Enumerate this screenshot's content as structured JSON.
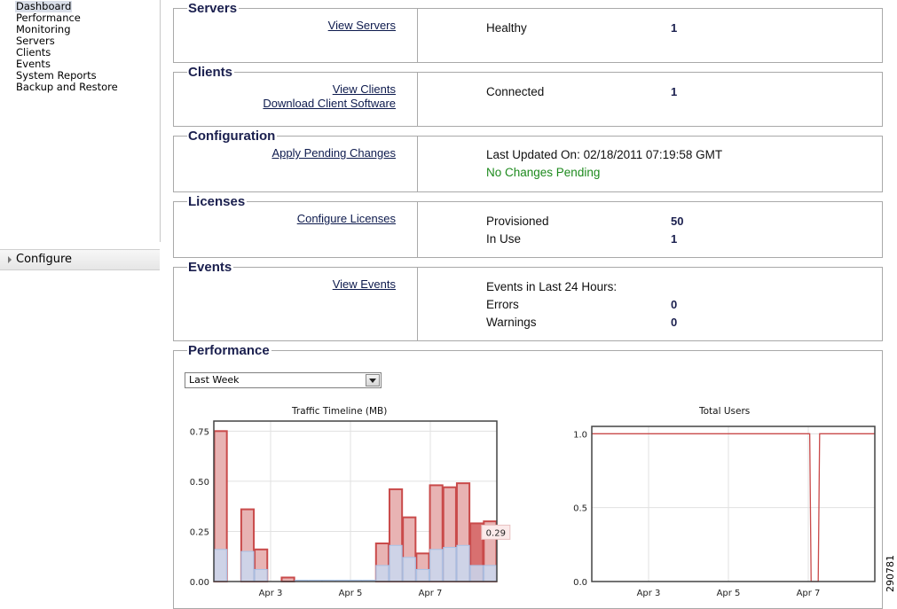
{
  "sidebar": {
    "items": [
      {
        "label": "Dashboard",
        "active": true
      },
      {
        "label": "Performance"
      },
      {
        "label": "Monitoring"
      },
      {
        "label": "Servers"
      },
      {
        "label": "Clients"
      },
      {
        "label": "Events"
      },
      {
        "label": "System Reports"
      },
      {
        "label": "Backup and Restore"
      }
    ],
    "configure_label": "Configure"
  },
  "servers": {
    "title": "Servers",
    "link": "View Servers",
    "status_label": "Healthy",
    "status_value": "1"
  },
  "clients": {
    "title": "Clients",
    "link_view": "View Clients",
    "link_download": "Download Client Software",
    "status_label": "Connected",
    "status_value": "1"
  },
  "configuration": {
    "title": "Configuration",
    "link": "Apply Pending Changes",
    "last_updated": "Last Updated On: 02/18/2011 07:19:58 GMT",
    "pending": "No Changes Pending",
    "pending_color": "#1d8a1d"
  },
  "licenses": {
    "title": "Licenses",
    "link": "Configure Licenses",
    "provisioned_label": "Provisioned",
    "provisioned_value": "50",
    "in_use_label": "In Use",
    "in_use_value": "1"
  },
  "events": {
    "title": "Events",
    "link": "View Events",
    "heading": "Events in Last 24 Hours:",
    "errors_label": "Errors",
    "errors_value": "0",
    "warnings_label": "Warnings",
    "warnings_value": "0"
  },
  "performance": {
    "title": "Performance",
    "range_selected": "Last Week"
  },
  "figure_id": "290781",
  "chart_data": [
    {
      "type": "bar",
      "title": "Traffic Timeline (MB)",
      "xlabel": "",
      "ylabel": "",
      "ylim": [
        0,
        0.8
      ],
      "yticks": [
        "0.00",
        "0.25",
        "0.50",
        "0.75"
      ],
      "xticks": [
        "Apr 3",
        "Apr 5",
        "Apr 7"
      ],
      "grid": true,
      "series": [
        {
          "values": [
            0.75,
            0,
            0.36,
            0.16,
            0,
            0.02,
            0,
            0,
            0,
            0,
            0,
            0,
            0.19,
            0.46,
            0.32,
            0.14,
            0.48,
            0.47,
            0.49,
            0.29,
            0.3
          ],
          "color": "#c94a4a"
        },
        {
          "values": [
            0.16,
            0,
            0.15,
            0.06,
            0,
            0,
            0.005,
            0.005,
            0.005,
            0.005,
            0.005,
            0.005,
            0.08,
            0.18,
            0.12,
            0.06,
            0.16,
            0.17,
            0.18,
            0.08,
            0.08
          ],
          "color": "#a7c3e8"
        }
      ],
      "highlight": {
        "index": 19,
        "label": "0.29"
      }
    },
    {
      "type": "line",
      "title": "Total Users",
      "xlabel": "",
      "ylabel": "",
      "ylim": [
        0,
        1.05
      ],
      "yticks": [
        "0.0",
        "0.5",
        "1.0"
      ],
      "xticks": [
        "Apr 3",
        "Apr 5",
        "Apr 7"
      ],
      "grid": true,
      "series": [
        {
          "x": [
            0,
            0.77,
            0.775,
            0.8,
            0.805,
            1
          ],
          "y": [
            1,
            1,
            0,
            0,
            1,
            1
          ],
          "color": "#c94a4a"
        }
      ]
    }
  ]
}
